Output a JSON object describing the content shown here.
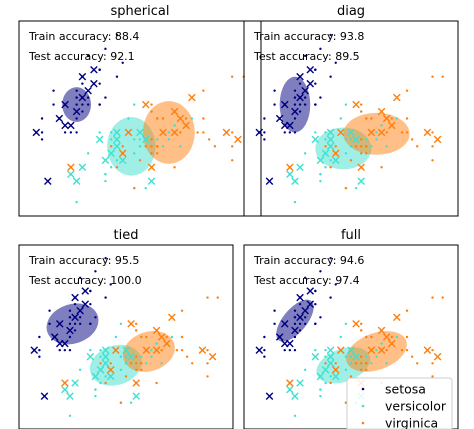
{
  "chart_data": [
    {
      "type": "scatter",
      "title": "spherical",
      "train_accuracy_label": "Train accuracy: 88.4",
      "test_accuracy_label": "Test accuracy: 92.1",
      "ellipses": [
        {
          "series": "setosa",
          "cx": 5.0,
          "cy": 3.4,
          "rx": 0.25,
          "ry": 0.25,
          "angle": 0
        },
        {
          "series": "versicolor",
          "cx": 5.95,
          "cy": 2.8,
          "rx": 0.42,
          "ry": 0.42,
          "angle": 0
        },
        {
          "series": "virginica",
          "cx": 6.6,
          "cy": 3.0,
          "rx": 0.45,
          "ry": 0.45,
          "angle": 0
        }
      ]
    },
    {
      "type": "scatter",
      "title": "diag",
      "train_accuracy_label": "Train accuracy: 93.8",
      "test_accuracy_label": "Test accuracy: 89.5",
      "ellipses": [
        {
          "series": "setosa",
          "cx": 5.0,
          "cy": 3.4,
          "rx": 0.3,
          "ry": 0.4,
          "angle": 0
        },
        {
          "series": "versicolor",
          "cx": 5.95,
          "cy": 2.77,
          "rx": 0.55,
          "ry": 0.3,
          "angle": 0
        },
        {
          "series": "virginica",
          "cx": 6.6,
          "cy": 2.98,
          "rx": 0.65,
          "ry": 0.3,
          "angle": 0
        }
      ]
    },
    {
      "type": "scatter",
      "title": "tied",
      "train_accuracy_label": "Train accuracy: 95.5",
      "test_accuracy_label": "Test accuracy: 100.0",
      "ellipses": [
        {
          "series": "setosa",
          "cx": 5.05,
          "cy": 3.4,
          "rx": 0.52,
          "ry": 0.3,
          "angle": -18
        },
        {
          "series": "versicolor",
          "cx": 5.9,
          "cy": 2.77,
          "rx": 0.52,
          "ry": 0.3,
          "angle": -18
        },
        {
          "series": "virginica",
          "cx": 6.55,
          "cy": 2.98,
          "rx": 0.52,
          "ry": 0.3,
          "angle": -18
        }
      ]
    },
    {
      "type": "scatter",
      "title": "full",
      "train_accuracy_label": "Train accuracy: 94.6",
      "test_accuracy_label": "Test accuracy: 97.4",
      "ellipses": [
        {
          "series": "setosa",
          "cx": 5.0,
          "cy": 3.45,
          "rx": 0.5,
          "ry": 0.18,
          "angle": -50
        },
        {
          "series": "versicolor",
          "cx": 5.95,
          "cy": 2.77,
          "rx": 0.55,
          "ry": 0.25,
          "angle": -20
        },
        {
          "series": "virginica",
          "cx": 6.6,
          "cy": 2.98,
          "rx": 0.62,
          "ry": 0.28,
          "angle": -20
        }
      ]
    }
  ],
  "shared": {
    "xlim": [
      4.0,
      8.2
    ],
    "ylim": [
      1.8,
      4.6
    ],
    "xticks": [],
    "yticks": [],
    "grid": false,
    "series": [
      {
        "name": "setosa",
        "color": "#000080"
      },
      {
        "name": "versicolor",
        "color": "#40e0d0"
      },
      {
        "name": "virginica",
        "color": "#ff7f0e"
      }
    ],
    "train_points": {
      "setosa": [
        [
          5.1,
          3.5
        ],
        [
          4.9,
          3.0
        ],
        [
          4.7,
          3.2
        ],
        [
          5.0,
          3.6
        ],
        [
          5.4,
          3.9
        ],
        [
          4.6,
          3.4
        ],
        [
          5.0,
          3.4
        ],
        [
          4.4,
          2.9
        ],
        [
          5.4,
          3.7
        ],
        [
          4.8,
          3.4
        ],
        [
          4.3,
          3.0
        ],
        [
          5.8,
          4.0
        ],
        [
          5.7,
          4.4
        ],
        [
          5.4,
          3.9
        ],
        [
          5.1,
          3.5
        ],
        [
          5.7,
          3.8
        ],
        [
          5.1,
          3.8
        ],
        [
          5.4,
          3.4
        ],
        [
          5.1,
          3.7
        ],
        [
          4.6,
          3.6
        ],
        [
          5.1,
          3.3
        ],
        [
          4.8,
          3.4
        ],
        [
          5.0,
          3.0
        ],
        [
          5.2,
          3.5
        ],
        [
          5.2,
          3.4
        ],
        [
          4.7,
          3.2
        ],
        [
          5.4,
          3.4
        ],
        [
          5.2,
          4.1
        ],
        [
          5.5,
          4.2
        ],
        [
          5.0,
          3.2
        ],
        [
          5.5,
          3.5
        ],
        [
          4.4,
          3.0
        ],
        [
          5.1,
          3.4
        ],
        [
          5.0,
          3.5
        ],
        [
          4.4,
          3.2
        ],
        [
          5.0,
          3.5
        ],
        [
          5.1,
          3.8
        ],
        [
          4.8,
          3.0
        ]
      ],
      "versicolor": [
        [
          7.0,
          3.2
        ],
        [
          6.4,
          3.2
        ],
        [
          6.9,
          3.1
        ],
        [
          5.5,
          2.3
        ],
        [
          6.5,
          2.8
        ],
        [
          5.7,
          2.8
        ],
        [
          6.3,
          3.3
        ],
        [
          4.9,
          2.4
        ],
        [
          6.6,
          2.9
        ],
        [
          5.2,
          2.7
        ],
        [
          5.0,
          2.0
        ],
        [
          5.9,
          3.0
        ],
        [
          6.0,
          2.2
        ],
        [
          6.1,
          2.9
        ],
        [
          5.6,
          2.9
        ],
        [
          6.7,
          3.1
        ],
        [
          5.6,
          3.0
        ],
        [
          5.8,
          2.7
        ],
        [
          6.2,
          2.2
        ],
        [
          5.6,
          2.5
        ],
        [
          5.9,
          3.2
        ],
        [
          6.1,
          2.8
        ],
        [
          6.3,
          2.5
        ],
        [
          6.1,
          2.8
        ],
        [
          6.4,
          2.9
        ],
        [
          6.6,
          3.0
        ],
        [
          6.8,
          2.8
        ],
        [
          6.7,
          3.0
        ],
        [
          6.0,
          2.9
        ],
        [
          5.7,
          2.6
        ],
        [
          5.5,
          2.4
        ],
        [
          5.5,
          2.4
        ],
        [
          5.8,
          2.7
        ],
        [
          6.0,
          2.7
        ],
        [
          5.4,
          3.0
        ],
        [
          6.0,
          3.4
        ],
        [
          6.7,
          3.1
        ]
      ],
      "virginica": [
        [
          6.3,
          3.3
        ],
        [
          5.8,
          2.7
        ],
        [
          7.1,
          3.0
        ],
        [
          6.3,
          2.9
        ],
        [
          6.5,
          3.0
        ],
        [
          7.6,
          3.0
        ],
        [
          4.9,
          2.5
        ],
        [
          7.3,
          2.9
        ],
        [
          6.7,
          2.5
        ],
        [
          7.2,
          3.6
        ],
        [
          6.5,
          3.2
        ],
        [
          6.4,
          2.7
        ],
        [
          6.8,
          3.0
        ],
        [
          5.7,
          2.5
        ],
        [
          5.8,
          2.8
        ],
        [
          6.4,
          3.2
        ],
        [
          6.5,
          3.0
        ],
        [
          7.7,
          3.8
        ],
        [
          7.7,
          2.6
        ],
        [
          6.0,
          2.2
        ],
        [
          6.9,
          3.2
        ],
        [
          5.6,
          2.8
        ],
        [
          7.7,
          2.8
        ],
        [
          6.3,
          2.7
        ],
        [
          6.7,
          3.3
        ],
        [
          7.2,
          3.2
        ],
        [
          6.2,
          2.8
        ],
        [
          6.1,
          3.0
        ],
        [
          6.4,
          2.8
        ],
        [
          7.2,
          3.0
        ],
        [
          7.4,
          2.8
        ],
        [
          7.9,
          3.8
        ],
        [
          6.4,
          2.8
        ],
        [
          6.3,
          2.8
        ],
        [
          6.1,
          2.6
        ],
        [
          7.7,
          3.0
        ],
        [
          6.3,
          3.4
        ]
      ]
    },
    "test_points": {
      "setosa": [
        [
          4.8,
          3.4
        ],
        [
          4.9,
          3.1
        ],
        [
          5.0,
          3.3
        ],
        [
          5.1,
          3.5
        ],
        [
          5.3,
          3.7
        ],
        [
          4.8,
          3.1
        ],
        [
          5.2,
          3.6
        ],
        [
          4.5,
          2.3
        ],
        [
          4.3,
          3.0
        ],
        [
          4.7,
          3.2
        ],
        [
          5.3,
          3.9
        ],
        [
          5.1,
          3.8
        ]
      ],
      "versicolor": [
        [
          5.5,
          2.6
        ],
        [
          6.1,
          3.0
        ],
        [
          5.8,
          2.6
        ],
        [
          5.0,
          2.3
        ],
        [
          5.6,
          2.7
        ],
        [
          5.7,
          3.0
        ],
        [
          5.7,
          2.9
        ],
        [
          6.2,
          2.9
        ],
        [
          5.1,
          2.5
        ],
        [
          5.7,
          2.8
        ],
        [
          4.9,
          2.4
        ],
        [
          5.4,
          2.9
        ],
        [
          6.3,
          2.3
        ]
      ],
      "virginica": [
        [
          6.9,
          3.1
        ],
        [
          5.8,
          2.7
        ],
        [
          6.8,
          3.2
        ],
        [
          6.7,
          3.3
        ],
        [
          6.7,
          3.0
        ],
        [
          6.3,
          2.5
        ],
        [
          6.5,
          3.0
        ],
        [
          6.2,
          3.4
        ],
        [
          5.9,
          3.0
        ],
        [
          4.9,
          2.5
        ],
        [
          7.0,
          3.5
        ],
        [
          7.6,
          3.0
        ],
        [
          7.8,
          2.9
        ]
      ]
    }
  },
  "legend": {
    "position": "lower right",
    "entries": [
      "setosa",
      "versicolor",
      "virginica"
    ]
  }
}
